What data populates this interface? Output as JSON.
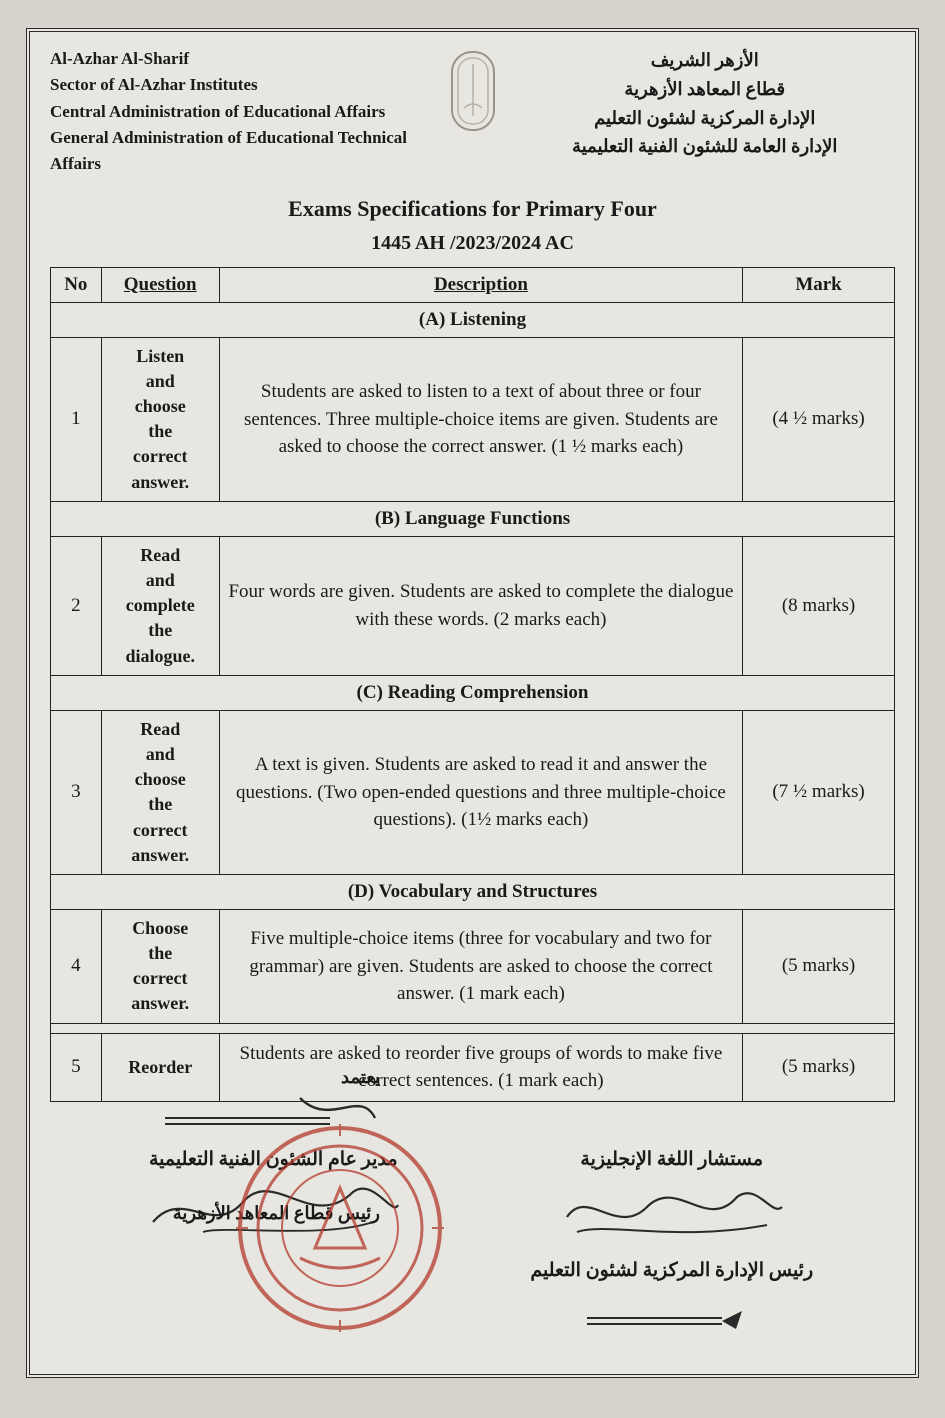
{
  "colors": {
    "page_bg": "#d7d2cb",
    "sheet_bg": "#e8e6e0",
    "border": "#2b2b2b",
    "text": "#1a1a1a",
    "stamp": "#b23a2e",
    "signature": "#2a2a2a"
  },
  "letterhead": {
    "english": {
      "l1": "Al-Azhar Al-Sharif",
      "l2": "Sector of Al-Azhar Institutes",
      "l3": "Central Administration of Educational Affairs",
      "l4": "General Administration of Educational Technical Affairs"
    },
    "arabic": {
      "l1": "الأزهر الشريف",
      "l2": "قطاع المعاهد الأزهرية",
      "l3": "الإدارة المركزية لشئون التعليم",
      "l4": "الإدارة العامة للشئون الفنية التعليمية"
    }
  },
  "title": {
    "main": "Exams Specifications for Primary Four",
    "sub": "1445 AH  /2023/2024 AC"
  },
  "table": {
    "headers": {
      "no": "No",
      "question": "Question",
      "description": "Description",
      "mark": "Mark"
    },
    "sections": {
      "a": "(A) Listening",
      "b": "(B) Language Functions",
      "c": "(C) Reading Comprehension",
      "d": "(D) Vocabulary and Structures"
    },
    "rows": {
      "r1": {
        "no": "1",
        "question": "Listen\nand\nchoose\nthe\ncorrect\nanswer.",
        "description": "Students are asked to listen to a text of about three or four sentences. Three multiple-choice items are given. Students are asked to choose the correct answer. (1 ½ marks each)",
        "mark": "(4 ½ marks)"
      },
      "r2": {
        "no": "2",
        "question": "Read\nand\ncomplete\nthe\ndialogue.",
        "description": "Four words are given. Students are asked to complete the dialogue with these words.    (2 marks each)",
        "mark": "(8 marks)"
      },
      "r3": {
        "no": "3",
        "question": "Read\nand\nchoose\nthe\ncorrect\nanswer.",
        "description": "A text is given. Students are asked to read it and answer the questions. (Two open-ended questions and three multiple-choice questions). (1½ marks each)",
        "mark": "(7 ½ marks)"
      },
      "r4": {
        "no": "4",
        "question": "Choose\nthe\ncorrect\nanswer.",
        "description": "Five multiple-choice items (three for vocabulary and two for grammar) are given. Students are asked to choose the correct answer. (1 mark each)",
        "mark": "(5 marks)"
      },
      "r5": {
        "no": "5",
        "question": "Reorder",
        "description": "Students are asked to reorder five groups of words to make five correct sentences. (1 mark each)",
        "mark": "(5 marks)"
      }
    }
  },
  "signatures": {
    "right_top": "مستشار اللغة الإنجليزية",
    "right_mid": "رئيس الإدارة المركزية لشئون التعليم",
    "left_top": "مدير عام الشئون الفنية التعليمية",
    "approve": "يعتمد",
    "approve_title": "رئيس قطاع المعاهد الأزهرية"
  }
}
